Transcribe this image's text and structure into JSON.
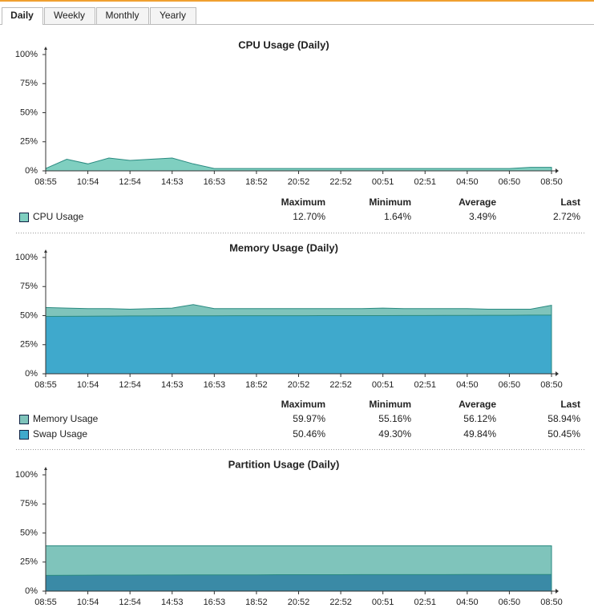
{
  "tabs": [
    "Daily",
    "Weekly",
    "Monthly",
    "Yearly"
  ],
  "chart_data": [
    {
      "type": "area",
      "title": "CPU Usage (Daily)",
      "categories": [
        "08:55",
        null,
        "10:54",
        null,
        "12:54",
        null,
        "14:53",
        null,
        "16:53",
        null,
        "18:52",
        null,
        "20:52",
        null,
        "22:52",
        null,
        "00:51",
        null,
        "02:51",
        null,
        "04:50",
        null,
        "06:50",
        null,
        "08:50"
      ],
      "ylim": [
        0,
        100
      ],
      "yticks": [
        {
          "value": 0,
          "label": "0%"
        },
        {
          "value": 25,
          "label": "25%"
        },
        {
          "value": 50,
          "label": "50%"
        },
        {
          "value": 75,
          "label": "75%"
        },
        {
          "value": 100,
          "label": "100%"
        }
      ],
      "stat_headers": [
        "Maximum",
        "Minimum",
        "Average",
        "Last"
      ],
      "series": [
        {
          "name": "CPU Usage",
          "color": "#7fcfc0",
          "values": [
            2,
            10,
            6,
            11,
            9,
            10,
            11,
            6,
            2,
            2,
            2,
            2,
            2,
            2,
            2,
            2,
            2,
            2,
            2,
            2,
            2,
            2,
            2,
            3,
            3
          ],
          "stats": [
            "12.70%",
            "1.64%",
            "3.49%",
            "2.72%"
          ]
        }
      ]
    },
    {
      "type": "area",
      "title": "Memory Usage (Daily)",
      "categories": [
        "08:55",
        null,
        "10:54",
        null,
        "12:54",
        null,
        "14:53",
        null,
        "16:53",
        null,
        "18:52",
        null,
        "20:52",
        null,
        "22:52",
        null,
        "00:51",
        null,
        "02:51",
        null,
        "04:50",
        null,
        "06:50",
        null,
        "08:50"
      ],
      "ylim": [
        0,
        100
      ],
      "yticks": [
        {
          "value": 0,
          "label": "0%"
        },
        {
          "value": 25,
          "label": "25%"
        },
        {
          "value": 50,
          "label": "50%"
        },
        {
          "value": 75,
          "label": "75%"
        },
        {
          "value": 100,
          "label": "100%"
        }
      ],
      "stat_headers": [
        "Maximum",
        "Minimum",
        "Average",
        "Last"
      ],
      "series": [
        {
          "name": "Memory Usage",
          "color": "#7fc4bb",
          "values": [
            57,
            56.5,
            56,
            56,
            55.5,
            56,
            56.5,
            59.5,
            56,
            56,
            56,
            56,
            56,
            56,
            56,
            56,
            56.5,
            56,
            56,
            56,
            56,
            55.5,
            55.5,
            55.5,
            58.9
          ],
          "stats": [
            "59.97%",
            "55.16%",
            "56.12%",
            "58.94%"
          ]
        },
        {
          "name": "Swap Usage",
          "color": "#3fa9cc",
          "values": [
            49.3,
            49.4,
            49.5,
            49.6,
            49.7,
            49.7,
            49.8,
            49.8,
            49.8,
            49.9,
            49.9,
            49.9,
            49.9,
            50,
            50,
            50,
            50,
            50.1,
            50.1,
            50.2,
            50.2,
            50.3,
            50.3,
            50.4,
            50.45
          ],
          "stats": [
            "50.46%",
            "49.30%",
            "49.84%",
            "50.45%"
          ]
        }
      ]
    },
    {
      "type": "area",
      "title": "Partition Usage (Daily)",
      "categories": [
        "08:55",
        null,
        "10:54",
        null,
        "12:54",
        null,
        "14:53",
        null,
        "16:53",
        null,
        "18:52",
        null,
        "20:52",
        null,
        "22:52",
        null,
        "00:51",
        null,
        "02:51",
        null,
        "04:50",
        null,
        "06:50",
        null,
        "08:50"
      ],
      "ylim": [
        0,
        100
      ],
      "yticks": [
        {
          "value": 0,
          "label": "0%"
        },
        {
          "value": 25,
          "label": "25%"
        },
        {
          "value": 50,
          "label": "50%"
        },
        {
          "value": 75,
          "label": "75%"
        },
        {
          "value": 100,
          "label": "100%"
        }
      ],
      "series": [
        {
          "color": "#7fc4bb",
          "values": [
            39,
            39,
            39,
            39,
            39,
            39,
            39,
            39,
            39,
            39,
            39,
            39,
            39,
            39,
            39,
            39,
            39,
            39,
            39,
            39,
            39,
            39,
            39,
            39,
            39
          ]
        },
        {
          "color": "#3a8aa6",
          "values": [
            13.5,
            13.6,
            13.7,
            13.8,
            13.8,
            13.9,
            13.9,
            14,
            14,
            14,
            14,
            14.1,
            14.1,
            14.1,
            14.1,
            14.2,
            14.2,
            14.2,
            14.2,
            14.2,
            14.3,
            14.3,
            14.3,
            14.3,
            14.3
          ]
        }
      ]
    }
  ]
}
